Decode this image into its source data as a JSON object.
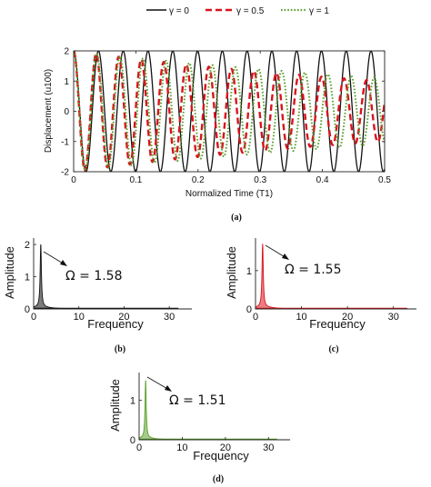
{
  "legend": [
    {
      "name": "γ = 0",
      "color": "#111111",
      "dash": "solid"
    },
    {
      "name": "γ = 0.5",
      "color": "#d8141c",
      "dash": "dash"
    },
    {
      "name": "γ = 1",
      "color": "#5aa02c",
      "dash": "dot"
    }
  ],
  "chart_data": [
    {
      "type": "line",
      "caption": "(a)",
      "xlabel": "Normalized Time (T1)",
      "ylabel": "Displacement (u100)",
      "xlim": [
        0,
        0.5
      ],
      "ylim": [
        -2,
        2
      ],
      "xticks": [
        "0",
        "0.1",
        "0.2",
        "0.3",
        "0.4",
        "0.5"
      ],
      "yticks": [
        "-2",
        "-1",
        "0",
        "1",
        "2"
      ],
      "series": [
        {
          "name": "γ = 0",
          "color": "#111111",
          "amplitude": 2.0,
          "cycles_per_unit": 25.1,
          "decay": 0.0
        },
        {
          "name": "γ = 0.5",
          "color": "#d8141c",
          "amplitude": 2.0,
          "cycles_per_unit": 27.6,
          "decay": 1.4
        },
        {
          "name": "γ = 1",
          "color": "#5aa02c",
          "amplitude": 2.0,
          "cycles_per_unit": 26.9,
          "decay": 1.2
        }
      ]
    },
    {
      "type": "line",
      "caption": "(b)",
      "xlabel": "Frequency",
      "ylabel": "Amplitude",
      "xlim": [
        0,
        35
      ],
      "ylim": [
        0,
        2.2
      ],
      "xticks": [
        "0",
        "10",
        "20",
        "30"
      ],
      "yticks": [
        "0",
        "1",
        "2"
      ],
      "color": "#111111",
      "peak_x": 1.58,
      "peak_y": 2.0,
      "data_end": 32,
      "annotation": "Ω = 1.58"
    },
    {
      "type": "line",
      "caption": "(c)",
      "xlabel": "Frequency",
      "ylabel": "Amplitude",
      "xlim": [
        0,
        35
      ],
      "ylim": [
        0,
        1.85
      ],
      "xticks": [
        "0",
        "10",
        "20",
        "30"
      ],
      "yticks": [
        "0",
        "1"
      ],
      "color": "#d8141c",
      "peak_x": 1.55,
      "peak_y": 1.7,
      "data_end": 33,
      "annotation": "Ω = 1.55"
    },
    {
      "type": "line",
      "caption": "(d)",
      "xlabel": "Frequency",
      "ylabel": "Amplitude",
      "xlim": [
        0,
        35
      ],
      "ylim": [
        0,
        1.7
      ],
      "xticks": [
        "0",
        "10",
        "20",
        "30"
      ],
      "yticks": [
        "0",
        "1"
      ],
      "color": "#5aa02c",
      "peak_x": 1.51,
      "peak_y": 1.5,
      "data_end": 32,
      "annotation": "Ω = 1.51"
    }
  ]
}
